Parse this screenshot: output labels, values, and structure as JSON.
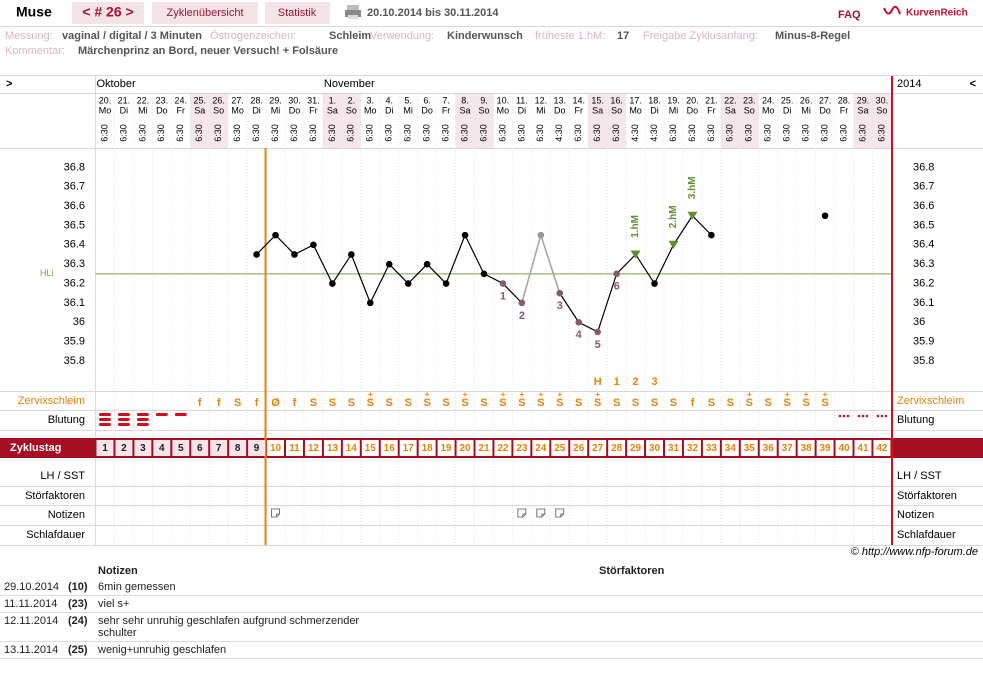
{
  "header": {
    "title": "Muse",
    "cycle": "< # 26 >",
    "tabs": [
      "Zyklenübersicht",
      "Statistik"
    ],
    "period": "20.10.2014 bis 30.11.2014",
    "faq": "FAQ",
    "logo": "KurvenReich"
  },
  "info": {
    "items": [
      {
        "label": "Messung:",
        "value": "vaginal / digital / 3 Minuten"
      },
      {
        "label": "Östrogenzeichen:",
        "value": "Schleim"
      },
      {
        "label": "Verwendung:",
        "value": "Kinderwunsch"
      },
      {
        "label": "früheste 1.hM:",
        "value": "17"
      },
      {
        "label": "Freigabe Zyklusanfang:",
        "value": "Minus-8-Regel"
      }
    ],
    "comment": {
      "label": "Kommentar:",
      "value": "Märchenprinz an Bord, neuer Versuch! + Folsäure"
    }
  },
  "chart": {
    "nav_left": ">",
    "nav_right": "<",
    "year": "2014",
    "months": [
      "Oktober",
      "November"
    ],
    "dates": [
      "20.",
      "21.",
      "22.",
      "23.",
      "24.",
      "25.",
      "26.",
      "27.",
      "28.",
      "29.",
      "30.",
      "31.",
      "1.",
      "2.",
      "3.",
      "4.",
      "5.",
      "6.",
      "7.",
      "8.",
      "9.",
      "10.",
      "11.",
      "12.",
      "13.",
      "14.",
      "15.",
      "16.",
      "17.",
      "18.",
      "19.",
      "20.",
      "21.",
      "22.",
      "23.",
      "24.",
      "25.",
      "26.",
      "27.",
      "28.",
      "29.",
      "30."
    ],
    "weekdays": [
      "Mo",
      "Di",
      "Mi",
      "Do",
      "Fr",
      "Sa",
      "So",
      "Mo",
      "Di",
      "Mi",
      "Do",
      "Fr",
      "Sa",
      "So",
      "Mo",
      "Di",
      "Mi",
      "Do",
      "Fr",
      "Sa",
      "So",
      "Mo",
      "Di",
      "Mi",
      "Do",
      "Fr",
      "Sa",
      "So",
      "Mo",
      "Di",
      "Mi",
      "Do",
      "Fr",
      "Sa",
      "So",
      "Mo",
      "Di",
      "Mi",
      "Do",
      "Fr",
      "Sa",
      "So"
    ],
    "times": [
      "6:30",
      "6:30",
      "6:30",
      "6:30",
      "6:30",
      "6:30",
      "6:30",
      "6:30",
      "6:30",
      "6:30",
      "6:30",
      "6:30",
      "6:30",
      "6:30",
      "6:30",
      "6:30",
      "6:30",
      "6:30",
      "6:30",
      "6:30",
      "6:30",
      "6:30",
      "6:30",
      "6:30",
      "4:30",
      "6:30",
      "6:30",
      "6:30",
      "4:30",
      "4:30",
      "6:30",
      "6:30",
      "6:30",
      "6:30",
      "6:30",
      "6:30",
      "6:30",
      "6:30",
      "6:30",
      "6:30",
      "6:30",
      "6:30"
    ],
    "weekend_days": [
      6,
      7,
      13,
      14,
      20,
      21,
      27,
      28,
      34,
      35,
      41,
      42
    ],
    "cycle_label": "Zyklustag",
    "cycle_days": [
      1,
      2,
      3,
      4,
      5,
      6,
      7,
      8,
      9,
      10,
      11,
      12,
      13,
      14,
      15,
      16,
      17,
      18,
      19,
      20,
      21,
      22,
      23,
      24,
      25,
      26,
      27,
      28,
      29,
      30,
      31,
      32,
      33,
      34,
      35,
      36,
      37,
      38,
      39,
      40,
      41,
      42
    ],
    "marker_line_day": 10,
    "temperatures": [
      null,
      null,
      null,
      null,
      null,
      null,
      null,
      null,
      36.35,
      36.45,
      36.35,
      36.4,
      36.2,
      36.35,
      36.1,
      36.3,
      36.2,
      36.3,
      36.2,
      36.45,
      36.25,
      36.2,
      36.1,
      36.45,
      36.15,
      36.0,
      35.95,
      36.25,
      36.35,
      36.2,
      36.4,
      36.55,
      36.45,
      null,
      null,
      null,
      null,
      null,
      36.55,
      null,
      null,
      null
    ],
    "point_labels": [
      null,
      null,
      null,
      null,
      null,
      null,
      null,
      null,
      null,
      null,
      null,
      null,
      null,
      null,
      null,
      null,
      null,
      null,
      null,
      null,
      null,
      "1",
      "2",
      null,
      "3",
      "4",
      "5",
      "6",
      "1.hM",
      null,
      "2.hM",
      "3.hM",
      null,
      null,
      null,
      null,
      null,
      null,
      null,
      null,
      null,
      null
    ],
    "excluded_days": [
      24
    ],
    "ylim": [
      35.65,
      36.9
    ],
    "yticks": [
      35.8,
      35.9,
      36,
      36.1,
      36.2,
      36.3,
      36.4,
      36.5,
      36.6,
      36.7,
      36.8
    ],
    "hline": {
      "label": "HLi",
      "value": 36.25,
      "color": "#7aa24a"
    },
    "mucus_label": "Zervixschleim",
    "mucus": [
      null,
      null,
      null,
      null,
      null,
      "f",
      "f",
      "S",
      "f",
      "Ø",
      "f",
      "S",
      "S",
      "S",
      "S",
      "S",
      "S",
      "S",
      "S",
      "S",
      "S",
      "S",
      "S",
      "S",
      "S",
      "S",
      "S",
      "S",
      "S",
      "S",
      "S",
      "f",
      "S",
      "S",
      "S",
      "S",
      "S",
      "S",
      "S",
      null,
      null,
      null
    ],
    "mucus_plus": [
      null,
      null,
      null,
      null,
      null,
      null,
      null,
      null,
      null,
      null,
      null,
      null,
      null,
      null,
      "+",
      null,
      null,
      "+",
      null,
      "+",
      null,
      "+",
      "+",
      "+",
      "+",
      null,
      "+",
      null,
      null,
      null,
      null,
      null,
      null,
      null,
      "+",
      null,
      "+",
      "+",
      "+",
      null,
      null,
      null
    ],
    "mucus_markers": [
      null,
      null,
      null,
      null,
      null,
      null,
      null,
      null,
      null,
      null,
      null,
      null,
      null,
      null,
      null,
      null,
      null,
      null,
      null,
      null,
      null,
      null,
      null,
      null,
      null,
      null,
      "H",
      "1",
      "2",
      "3",
      null,
      null,
      null,
      null,
      null,
      null,
      null,
      null,
      null,
      null,
      null,
      null
    ],
    "bleeding_label": "Blutung",
    "bleeding": [
      3,
      3,
      3,
      1,
      1,
      null,
      null,
      null,
      null,
      null,
      null,
      null,
      null,
      null,
      null,
      null,
      null,
      null,
      null,
      null,
      null,
      null,
      null,
      null,
      null,
      null,
      null,
      null,
      null,
      null,
      null,
      null,
      null,
      null,
      null,
      null,
      null,
      null,
      null,
      null,
      null,
      null
    ],
    "spotting": [
      null,
      null,
      null,
      null,
      null,
      null,
      null,
      null,
      null,
      null,
      null,
      null,
      null,
      null,
      null,
      null,
      null,
      null,
      null,
      null,
      null,
      null,
      null,
      null,
      null,
      null,
      null,
      null,
      null,
      null,
      null,
      null,
      null,
      null,
      null,
      null,
      null,
      null,
      null,
      3,
      3,
      3
    ],
    "rows": [
      "LH / SST",
      "Störfaktoren",
      "Notizen",
      "Schlafdauer"
    ],
    "note_days": [
      10,
      23,
      24,
      25
    ],
    "copyright": "© http://www.nfp-forum.de"
  },
  "notes": {
    "headers": [
      "Notizen",
      "Störfaktoren"
    ],
    "rows": [
      [
        "29.10.2014",
        "(10)",
        "6min gemessen"
      ],
      [
        "11.11.2014",
        "(23)",
        "viel s+"
      ],
      [
        "12.11.2014",
        "(24)",
        "sehr sehr unruhig geschlafen aufgrund schmerzender schulter"
      ],
      [
        "13.11.2014",
        "(25)",
        "wenig+unruhig geschlafen"
      ]
    ]
  }
}
